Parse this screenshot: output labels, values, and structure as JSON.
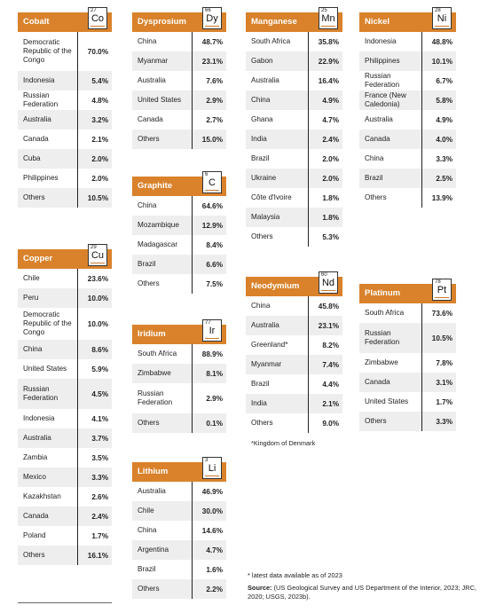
{
  "tables": [
    {
      "name": "Cobalt",
      "number": "27",
      "symbol": "Co",
      "rows": [
        {
          "c": "Democratic Republic of the Congo",
          "v": "70.0%"
        },
        {
          "c": "Indonesia",
          "v": "5.4%"
        },
        {
          "c": "Russian Federation",
          "v": "4.8%"
        },
        {
          "c": "Australia",
          "v": "3.2%"
        },
        {
          "c": "Canada",
          "v": "2.1%"
        },
        {
          "c": "Cuba",
          "v": "2.0%"
        },
        {
          "c": "Philippines",
          "v": "2.0%"
        },
        {
          "c": "Others",
          "v": "10.5%"
        }
      ]
    },
    {
      "name": "Dysprosium",
      "number": "66",
      "symbol": "Dy",
      "rows": [
        {
          "c": "China",
          "v": "48.7%"
        },
        {
          "c": "Myanmar",
          "v": "23.1%"
        },
        {
          "c": "Australia",
          "v": "7.6%"
        },
        {
          "c": "United States",
          "v": "2.9%"
        },
        {
          "c": "Canada",
          "v": "2.7%"
        },
        {
          "c": "Others",
          "v": "15.0%"
        }
      ]
    },
    {
      "name": "Manganese",
      "number": "25",
      "symbol": "Mn",
      "rows": [
        {
          "c": "South Africa",
          "v": "35.8%"
        },
        {
          "c": "Gabon",
          "v": "22.9%"
        },
        {
          "c": "Australia",
          "v": "16.4%"
        },
        {
          "c": "China",
          "v": "4.9%"
        },
        {
          "c": "Ghana",
          "v": "4.7%"
        },
        {
          "c": "India",
          "v": "2.4%"
        },
        {
          "c": "Brazil",
          "v": "2.0%"
        },
        {
          "c": "Ukraine",
          "v": "2.0%"
        },
        {
          "c": "Côte d'Ivoire",
          "v": "1.8%"
        },
        {
          "c": "Malaysia",
          "v": "1.8%"
        },
        {
          "c": "Others",
          "v": "5.3%"
        }
      ]
    },
    {
      "name": "Nickel",
      "number": "28",
      "symbol": "Ni",
      "rows": [
        {
          "c": "Indonesia",
          "v": "48.8%"
        },
        {
          "c": "Philippines",
          "v": "10.1%"
        },
        {
          "c": "Russian Federation",
          "v": "6.7%"
        },
        {
          "c": "France (New Caledonia)",
          "v": "5.8%"
        },
        {
          "c": "Australia",
          "v": "4.9%"
        },
        {
          "c": "Canada",
          "v": "4.0%"
        },
        {
          "c": "China",
          "v": "3.3%"
        },
        {
          "c": "Brazil",
          "v": "2.5%"
        },
        {
          "c": "Others",
          "v": "13.9%"
        }
      ]
    },
    {
      "name": "Graphite",
      "number": "6",
      "symbol": "C",
      "rows": [
        {
          "c": "China",
          "v": "64.6%"
        },
        {
          "c": "Mozambique",
          "v": "12.9%"
        },
        {
          "c": "Madagascar",
          "v": "8.4%"
        },
        {
          "c": "Brazil",
          "v": "6.6%"
        },
        {
          "c": "Others",
          "v": "7.5%"
        }
      ]
    },
    {
      "name": "Copper",
      "number": "29",
      "symbol": "Cu",
      "rows": [
        {
          "c": "Chile",
          "v": "23.6%"
        },
        {
          "c": "Peru",
          "v": "10.0%"
        },
        {
          "c": "Democratic Republic of the Congo",
          "v": "10.0%"
        },
        {
          "c": "China",
          "v": "8.6%"
        },
        {
          "c": "United States",
          "v": "5.9%"
        },
        {
          "c": "Russian Federation",
          "v": "4.5%"
        },
        {
          "c": "Indonesia",
          "v": "4.1%"
        },
        {
          "c": "Australia",
          "v": "3.7%"
        },
        {
          "c": "Zambia",
          "v": "3.5%"
        },
        {
          "c": "Mexico",
          "v": "3.3%"
        },
        {
          "c": "Kazakhstan",
          "v": "2.6%"
        },
        {
          "c": "Canada",
          "v": "2.4%"
        },
        {
          "c": "Poland",
          "v": "1.7%"
        },
        {
          "c": "Others",
          "v": "16.1%"
        }
      ]
    },
    {
      "name": "Neodymium",
      "number": "60",
      "symbol": "Nd",
      "rows": [
        {
          "c": "China",
          "v": "45.8%"
        },
        {
          "c": "Australia",
          "v": "23.1%"
        },
        {
          "c": "Greenland*",
          "v": "8.2%"
        },
        {
          "c": "Myanmar",
          "v": "7.4%"
        },
        {
          "c": "Brazil",
          "v": "4.4%"
        },
        {
          "c": "India",
          "v": "2.1%"
        },
        {
          "c": "Others",
          "v": "9.0%"
        }
      ]
    },
    {
      "name": "Platinum",
      "number": "78",
      "symbol": "Pt",
      "rows": [
        {
          "c": "South Africa",
          "v": "73.6%"
        },
        {
          "c": "Russian Federation",
          "v": "10.5%"
        },
        {
          "c": "Zimbabwe",
          "v": "7.8%"
        },
        {
          "c": "Canada",
          "v": "3.1%"
        },
        {
          "c": "United States",
          "v": "1.7%"
        },
        {
          "c": "Others",
          "v": "3.3%"
        }
      ]
    },
    {
      "name": "Iridium",
      "number": "77",
      "symbol": "Ir",
      "rows": [
        {
          "c": "South Africa",
          "v": "88.9%"
        },
        {
          "c": "Zimbabwe",
          "v": "8.1%"
        },
        {
          "c": "Russian Federation",
          "v": "2.9%"
        },
        {
          "c": "Others",
          "v": "0.1%"
        }
      ]
    },
    {
      "name": "Lithium",
      "number": "3",
      "symbol": "Li",
      "rows": [
        {
          "c": "Australia",
          "v": "46.9%"
        },
        {
          "c": "Chile",
          "v": "30.0%"
        },
        {
          "c": "China",
          "v": "14.6%"
        },
        {
          "c": "Argentina",
          "v": "4.7%"
        },
        {
          "c": "Brazil",
          "v": "1.6%"
        },
        {
          "c": "Others",
          "v": "2.2%"
        }
      ]
    }
  ],
  "notes": {
    "greenland": "*Kingdom of Denmark",
    "latest": "* latest data available as of 2023",
    "source_label": "Source:",
    "source_text": " (US Geological Survey and US Department of the Interior, 2023; JRC, 2020; USGS, 2023b)."
  }
}
